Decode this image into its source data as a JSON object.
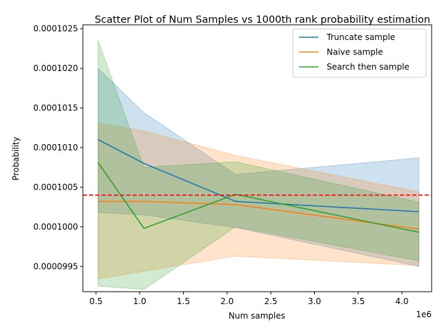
{
  "chart_data": {
    "type": "line",
    "title": "Scatter Plot of Num Samples vs 1000th rank probability estimation",
    "xlabel": "Num samples",
    "ylabel": "Probability",
    "x_offset_label": "1e6",
    "xlim": [
      350000,
      4340000
    ],
    "ylim": [
      9.918e-05,
      0.00010255
    ],
    "x_ticks": [
      {
        "value": 500000,
        "label": "0.5"
      },
      {
        "value": 1000000,
        "label": "1.0"
      },
      {
        "value": 1500000,
        "label": "1.5"
      },
      {
        "value": 2000000,
        "label": "2.0"
      },
      {
        "value": 2500000,
        "label": "2.5"
      },
      {
        "value": 3000000,
        "label": "3.0"
      },
      {
        "value": 3500000,
        "label": "3.5"
      },
      {
        "value": 4000000,
        "label": "4.0"
      }
    ],
    "y_ticks": [
      {
        "value": 9.95e-05,
        "label": "0.0000995"
      },
      {
        "value": 0.0001,
        "label": "0.0001000"
      },
      {
        "value": 0.0001005,
        "label": "0.0001005"
      },
      {
        "value": 0.000101,
        "label": "0.0001010"
      },
      {
        "value": 0.0001015,
        "label": "0.0001015"
      },
      {
        "value": 0.000102,
        "label": "0.0001020"
      },
      {
        "value": 0.0001025,
        "label": "0.0001025"
      }
    ],
    "x": [
      524288,
      1048576,
      2097152,
      4194304
    ],
    "series": [
      {
        "name": "Truncate sample",
        "color": "#1f77b4",
        "values": [
          0.0001011,
          0.0001008,
          0.00010032,
          0.00010019
        ],
        "lower": [
          0.00010018,
          0.00010015,
          9.999e-05,
          9.95e-05
        ],
        "upper": [
          0.000102,
          0.00010144,
          0.00010066,
          0.00010087
        ]
      },
      {
        "name": "Naive sample",
        "color": "#ff7f0e",
        "values": [
          0.00010032,
          0.00010032,
          0.00010028,
          9.997e-05
        ],
        "lower": [
          9.934e-05,
          9.944e-05,
          9.963e-05,
          9.951e-05
        ],
        "upper": [
          0.00010131,
          0.00010121,
          0.0001009,
          0.00010044
        ]
      },
      {
        "name": "Search then sample",
        "color": "#2ca02c",
        "values": [
          0.00010081,
          9.998e-05,
          0.00010041,
          9.993e-05
        ],
        "lower": [
          9.925e-05,
          9.921e-05,
          0.0001,
          9.957e-05
        ],
        "upper": [
          0.00010235,
          0.00010075,
          0.00010082,
          0.00010031
        ]
      }
    ],
    "reference_line": {
      "value": 0.0001004,
      "color": "#ff0000",
      "style": "dashed"
    },
    "legend": {
      "placement": "top-right"
    },
    "grid": false
  }
}
